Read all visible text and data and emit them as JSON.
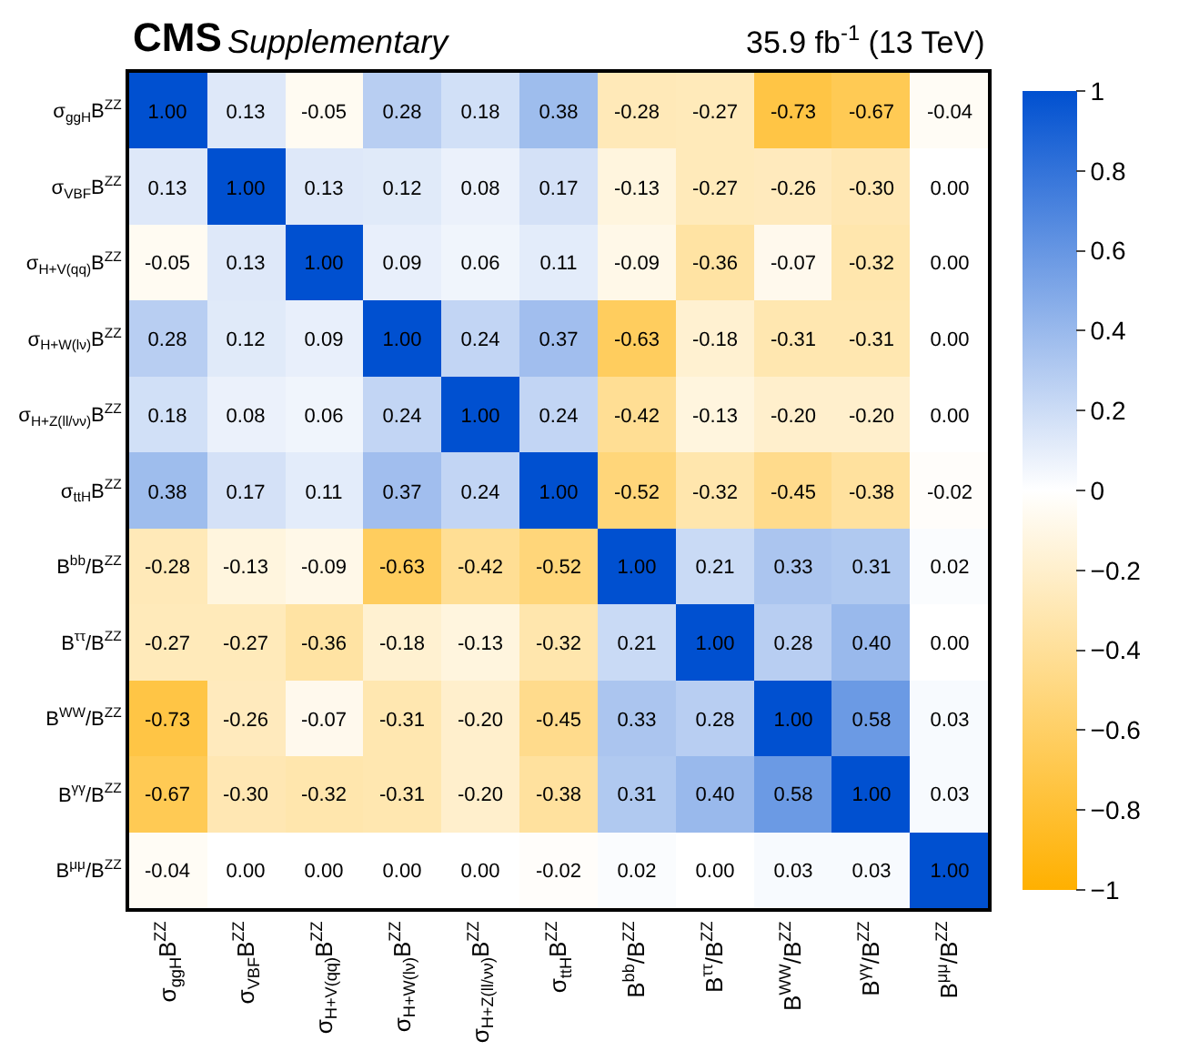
{
  "chart_data": {
    "type": "heatmap",
    "title": "CMS",
    "subtitle": "Supplementary",
    "annotations": [
      "35.9 fb$^{-1}$ (13 TeV)"
    ],
    "categories": [
      "σ$_{ggH}$B$^{ZZ}$",
      "σ$_{VBF}$B$^{ZZ}$",
      "σ$_{H+V(qq)}$B$^{ZZ}$",
      "σ$_{H+W(lν)}$B$^{ZZ}$",
      "σ$_{H+Z(ll/νν)}$B$^{ZZ}$",
      "σ$_{ttH}$B$^{ZZ}$",
      "B$^{bb}$/B$^{ZZ}$",
      "B$^{ττ}$/B$^{ZZ}$",
      "B$^{WW}$/B$^{ZZ}$",
      "B$^{γγ}$/B$^{ZZ}$",
      "B$^{μμ}$/B$^{ZZ}$"
    ],
    "y_categories": [
      "σ$_{ggH}$B$^{ZZ}$",
      "σ$_{VBF}$B$^{ZZ}$",
      "σ$_{H+V(qq)}$B$^{ZZ}$",
      "σ$_{H+W(lν)}$B$^{ZZ}$",
      "σ$_{H+Z(ll/νν)}$B$^{ZZ}$",
      "σ$_{ttH}$B$^{ZZ}$",
      "B$^{bb}$/B$^{ZZ}$",
      "B$^{ττ}$/B$^{ZZ}$",
      "B$^{WW}$/B$^{ZZ}$",
      "B$^{γγ}$/B$^{ZZ}$",
      "B$^{μμ}$/B$^{ZZ}$"
    ],
    "cells": [
      [
        1.0,
        0.13,
        -0.05,
        0.28,
        0.18,
        0.38,
        -0.28,
        -0.27,
        -0.73,
        -0.67,
        -0.04
      ],
      [
        0.13,
        1.0,
        0.13,
        0.12,
        0.08,
        0.17,
        -0.13,
        -0.27,
        -0.26,
        -0.3,
        0.0
      ],
      [
        -0.05,
        0.13,
        1.0,
        0.09,
        0.06,
        0.11,
        -0.09,
        -0.36,
        -0.07,
        -0.32,
        0.0
      ],
      [
        0.28,
        0.12,
        0.09,
        1.0,
        0.24,
        0.37,
        -0.63,
        -0.18,
        -0.31,
        -0.31,
        0.0
      ],
      [
        0.18,
        0.08,
        0.06,
        0.24,
        1.0,
        0.24,
        -0.42,
        -0.13,
        -0.2,
        -0.2,
        0.0
      ],
      [
        0.38,
        0.17,
        0.11,
        0.37,
        0.24,
        1.0,
        -0.52,
        -0.32,
        -0.45,
        -0.38,
        -0.02
      ],
      [
        -0.28,
        -0.13,
        -0.09,
        -0.63,
        -0.42,
        -0.52,
        1.0,
        0.21,
        0.33,
        0.31,
        0.02
      ],
      [
        -0.27,
        -0.27,
        -0.36,
        -0.18,
        -0.13,
        -0.32,
        0.21,
        1.0,
        0.28,
        0.4,
        0.0
      ],
      [
        -0.73,
        -0.26,
        -0.07,
        -0.31,
        -0.2,
        -0.45,
        0.33,
        0.28,
        1.0,
        0.58,
        0.03
      ],
      [
        -0.67,
        -0.3,
        -0.32,
        -0.31,
        -0.2,
        -0.38,
        0.31,
        0.4,
        0.58,
        1.0,
        0.03
      ],
      [
        -0.04,
        0.0,
        0.0,
        0.0,
        0.0,
        -0.02,
        0.02,
        0.0,
        0.03,
        0.03,
        1.0
      ]
    ],
    "cell_labels": [
      [
        "1.00",
        "0.13",
        "-0.05",
        "0.28",
        "0.18",
        "0.38",
        "-0.28",
        "-0.27",
        "-0.73",
        "-0.67",
        "-0.04"
      ],
      [
        "0.13",
        "1.00",
        "0.13",
        "0.12",
        "0.08",
        "0.17",
        "-0.13",
        "-0.27",
        "-0.26",
        "-0.30",
        "0.00"
      ],
      [
        "-0.05",
        "0.13",
        "1.00",
        "0.09",
        "0.06",
        "0.11",
        "-0.09",
        "-0.36",
        "-0.07",
        "-0.32",
        "0.00"
      ],
      [
        "0.28",
        "0.12",
        "0.09",
        "1.00",
        "0.24",
        "0.37",
        "-0.63",
        "-0.18",
        "-0.31",
        "-0.31",
        "0.00"
      ],
      [
        "0.18",
        "0.08",
        "0.06",
        "0.24",
        "1.00",
        "0.24",
        "-0.42",
        "-0.13",
        "-0.20",
        "-0.20",
        "0.00"
      ],
      [
        "0.38",
        "0.17",
        "0.11",
        "0.37",
        "0.24",
        "1.00",
        "-0.52",
        "-0.32",
        "-0.45",
        "-0.38",
        "-0.02"
      ],
      [
        "-0.28",
        "-0.13",
        "-0.09",
        "-0.63",
        "-0.42",
        "-0.52",
        "1.00",
        "0.21",
        "0.33",
        "0.31",
        "0.02"
      ],
      [
        "-0.27",
        "-0.27",
        "-0.36",
        "-0.18",
        "-0.13",
        "-0.32",
        "0.21",
        "1.00",
        "0.28",
        "0.40",
        "0.00"
      ],
      [
        "-0.73",
        "-0.26",
        "-0.07",
        "-0.31",
        "-0.20",
        "-0.45",
        "0.33",
        "0.28",
        "1.00",
        "0.58",
        "0.03"
      ],
      [
        "-0.67",
        "-0.30",
        "-0.32",
        "-0.31",
        "-0.20",
        "-0.38",
        "0.31",
        "0.40",
        "0.58",
        "1.00",
        "0.03"
      ],
      [
        "-0.04",
        "0.00",
        "0.00",
        "0.00",
        "0.00",
        "-0.02",
        "0.02",
        "0.00",
        "0.03",
        "0.03",
        "1.00"
      ]
    ],
    "clim": [
      -1,
      1
    ],
    "cticks": [
      1,
      0.8,
      0.6,
      0.4,
      0.2,
      0,
      {
        "value": -0.2,
        "label": "−0.2"
      },
      {
        "value": -0.4,
        "label": "−0.4"
      },
      {
        "value": -0.6,
        "label": "−0.6"
      },
      {
        "value": -0.8,
        "label": "−0.8"
      },
      {
        "value": -1,
        "label": "−1"
      }
    ]
  }
}
